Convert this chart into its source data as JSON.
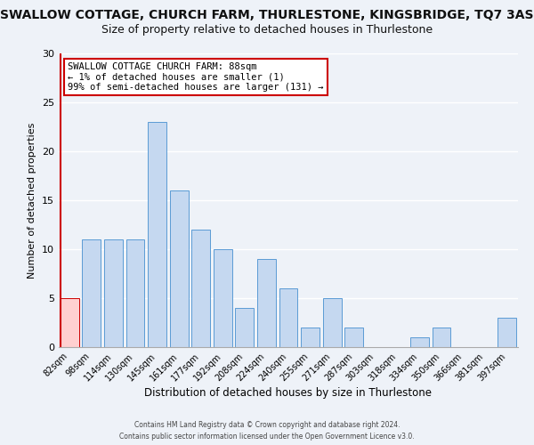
{
  "title": "SWALLOW COTTAGE, CHURCH FARM, THURLESTONE, KINGSBRIDGE, TQ7 3AS",
  "subtitle": "Size of property relative to detached houses in Thurlestone",
  "xlabel": "Distribution of detached houses by size in Thurlestone",
  "ylabel": "Number of detached properties",
  "categories": [
    "82sqm",
    "98sqm",
    "114sqm",
    "130sqm",
    "145sqm",
    "161sqm",
    "177sqm",
    "192sqm",
    "208sqm",
    "224sqm",
    "240sqm",
    "255sqm",
    "271sqm",
    "287sqm",
    "303sqm",
    "318sqm",
    "334sqm",
    "350sqm",
    "366sqm",
    "381sqm",
    "397sqm"
  ],
  "values": [
    5,
    11,
    11,
    11,
    23,
    16,
    12,
    10,
    4,
    9,
    6,
    2,
    5,
    2,
    0,
    0,
    1,
    2,
    0,
    0,
    3
  ],
  "bar_color": "#c5d8f0",
  "bar_edge_color": "#5b9bd5",
  "highlight_color": "#ffd0d0",
  "highlight_edge_color": "#cc0000",
  "vline_color": "#cc0000",
  "ylim": [
    0,
    30
  ],
  "yticks": [
    0,
    5,
    10,
    15,
    20,
    25,
    30
  ],
  "annotation_title": "SWALLOW COTTAGE CHURCH FARM: 88sqm",
  "annotation_line1": "← 1% of detached houses are smaller (1)",
  "annotation_line2": "99% of semi-detached houses are larger (131) →",
  "annotation_box_color": "#ffffff",
  "annotation_box_edge": "#cc0000",
  "footer1": "Contains HM Land Registry data © Crown copyright and database right 2024.",
  "footer2": "Contains public sector information licensed under the Open Government Licence v3.0.",
  "background_color": "#eef2f8",
  "grid_color": "#ffffff",
  "title_fontsize": 10,
  "subtitle_fontsize": 9
}
